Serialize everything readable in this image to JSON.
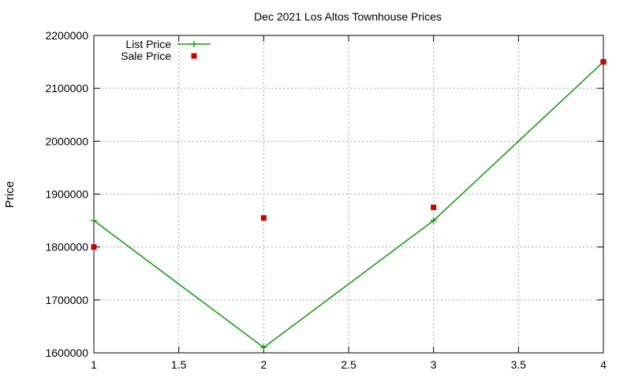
{
  "chart_data": {
    "type": "line",
    "title": "Dec 2021 Los Altos Townhouse Prices",
    "xlabel": "",
    "ylabel": "Price",
    "xlim": [
      1,
      4
    ],
    "ylim": [
      1600000,
      2200000
    ],
    "x_ticks": [
      "1",
      "1.5",
      "2",
      "2.5",
      "3",
      "3.5",
      "4"
    ],
    "y_ticks": [
      "1600000",
      "1700000",
      "1800000",
      "1900000",
      "2000000",
      "2100000",
      "2200000"
    ],
    "grid": true,
    "legend_position": "top-left",
    "series": [
      {
        "name": "List Price",
        "style": "line+cross",
        "color": "#1a9c1a",
        "points": [
          [
            1,
            1850000
          ],
          [
            2,
            1610000
          ],
          [
            3,
            1850000
          ],
          [
            4,
            2150000
          ]
        ]
      },
      {
        "name": "Sale Price",
        "style": "square",
        "color": "#cc0000",
        "points": [
          [
            1,
            1800000
          ],
          [
            2,
            1855000
          ],
          [
            3,
            1875000
          ],
          [
            4,
            2150000
          ]
        ]
      }
    ]
  }
}
